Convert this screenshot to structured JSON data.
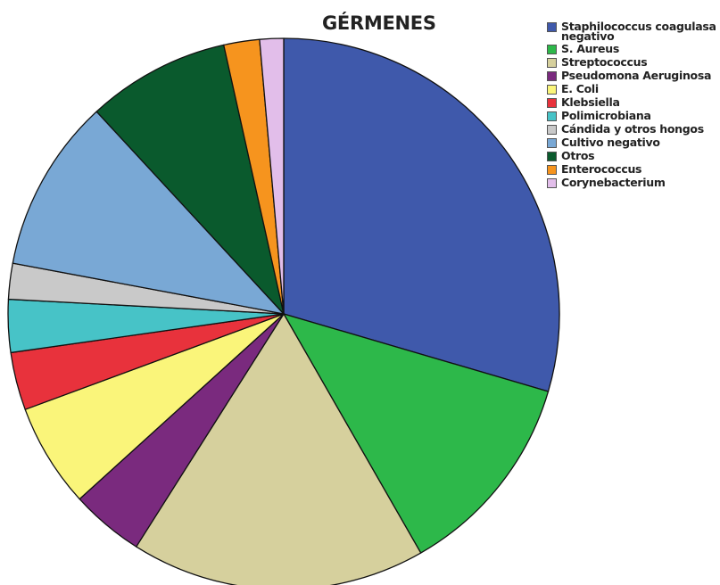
{
  "chart_data": {
    "type": "pie",
    "title": "GÉRMENES",
    "legend_position": "top-right",
    "start_angle_deg": 0,
    "direction": "clockwise",
    "slices": [
      {
        "label": "Staphilococcus coagulasa negativo",
        "value": 29.6,
        "color": "#3F59AB"
      },
      {
        "label": "S. Aureus",
        "value": 12.2,
        "color": "#2DB84A"
      },
      {
        "label": "Streptococcus",
        "value": 17.3,
        "color": "#D6D09D"
      },
      {
        "label": "Pseudomona Aeruginosa",
        "value": 4.3,
        "color": "#7A2A7E"
      },
      {
        "label": "E. Coli",
        "value": 6.1,
        "color": "#FAF57A"
      },
      {
        "label": "Klebsiella",
        "value": 3.4,
        "color": "#E8323C"
      },
      {
        "label": "Polimicrobiana",
        "value": 3.1,
        "color": "#47C3C7"
      },
      {
        "label": "Cándida y otros hongos",
        "value": 2.1,
        "color": "#C9C9C9"
      },
      {
        "label": "Cultivo negativo",
        "value": 10.2,
        "color": "#79A8D5"
      },
      {
        "label": "Otros",
        "value": 8.4,
        "color": "#0A5A2D"
      },
      {
        "label": "Enterococcus",
        "value": 2.1,
        "color": "#F6941E"
      },
      {
        "label": "Corynebacterium",
        "value": 1.4,
        "color": "#E2BEEA"
      }
    ]
  }
}
